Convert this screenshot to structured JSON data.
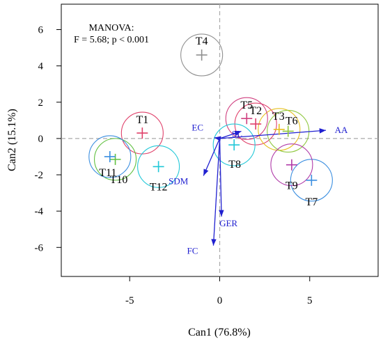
{
  "chart_data": {
    "type": "scatter",
    "title": "",
    "xlabel": "Can1 (76.8%)",
    "ylabel": "Can2 (15.1%)",
    "xlim": [
      -8.8,
      8.8
    ],
    "ylim": [
      -7.6,
      7.4
    ],
    "xticks": [
      -5,
      0,
      5
    ],
    "yticks": [
      -6,
      -4,
      -2,
      0,
      2,
      4,
      6
    ],
    "annotation": [
      "MANOVA:",
      "F = 5.68; p < 0.001"
    ],
    "reference_lines": {
      "x": 0,
      "y": 0,
      "color": "#aaaaaa",
      "style": "dashed"
    },
    "groups": [
      {
        "label": "T1",
        "x": -4.3,
        "y": 0.3,
        "color": "#e0406a"
      },
      {
        "label": "T2",
        "x": 2.0,
        "y": 0.8,
        "color": "#e0406a"
      },
      {
        "label": "T3",
        "x": 3.3,
        "y": 0.5,
        "color": "#e6c020"
      },
      {
        "label": "T4",
        "x": -1.0,
        "y": 4.6,
        "color": "#909090"
      },
      {
        "label": "T5",
        "x": 1.5,
        "y": 1.1,
        "color": "#d04080"
      },
      {
        "label": "T6",
        "x": 3.8,
        "y": 0.4,
        "color": "#90c840"
      },
      {
        "label": "T7",
        "x": 5.1,
        "y": -2.3,
        "color": "#3a8ee0"
      },
      {
        "label": "T8",
        "x": 0.8,
        "y": -0.35,
        "color": "#22c8d8"
      },
      {
        "label": "T9",
        "x": 4.0,
        "y": -1.45,
        "color": "#b03aa8"
      },
      {
        "label": "T10",
        "x": -5.8,
        "y": -1.15,
        "color": "#60c040"
      },
      {
        "label": "T11",
        "x": -6.1,
        "y": -1.0,
        "color": "#3a8ee0"
      },
      {
        "label": "T12",
        "x": -3.4,
        "y": -1.55,
        "color": "#22c8d8"
      }
    ],
    "vectors": [
      {
        "label": "AA",
        "x": 5.9,
        "y": 0.45,
        "color": "#2020d0"
      },
      {
        "label": "SL",
        "x": 1.2,
        "y": 0.4,
        "color": "#2020d0"
      },
      {
        "label": "EC",
        "x": -0.3,
        "y": 0.05,
        "color": "#2020d0"
      },
      {
        "label": "SDM",
        "x": -0.9,
        "y": -2.05,
        "color": "#2020d0"
      },
      {
        "label": "GER",
        "x": 0.1,
        "y": -4.3,
        "color": "#2020d0"
      },
      {
        "label": "FC",
        "x": -0.35,
        "y": -5.9,
        "color": "#2020d0"
      }
    ]
  }
}
